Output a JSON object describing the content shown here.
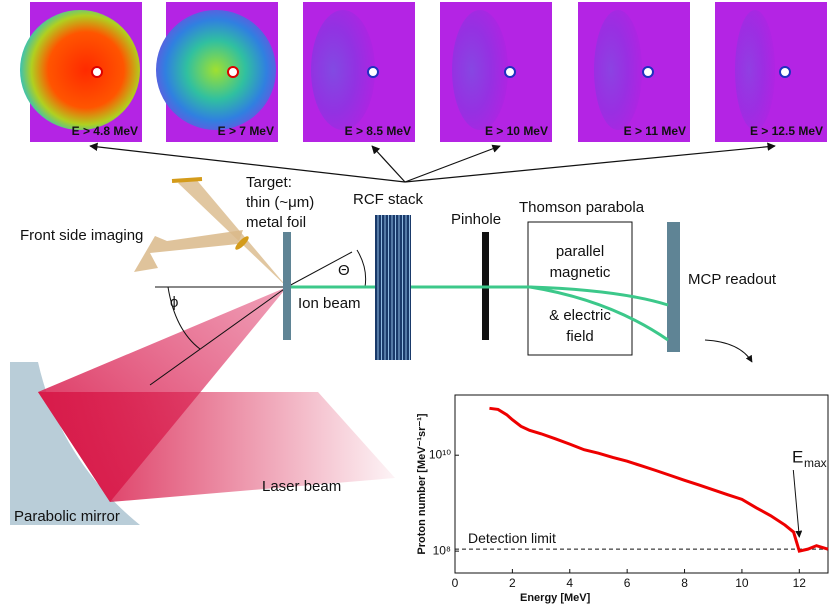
{
  "rcf_images": [
    {
      "label": "E > 4.8 MeV"
    },
    {
      "label": "E > 7 MeV"
    },
    {
      "label": "E > 8.5 MeV"
    },
    {
      "label": "E > 10 MeV"
    },
    {
      "label": "E > 11 MeV"
    },
    {
      "label": "E > 12.5 MeV"
    }
  ],
  "labels": {
    "target_1": "Target:",
    "target_2": "thin (~μm)",
    "target_3": "metal foil",
    "rcf_stack": "RCF stack",
    "pinhole": "Pinhole",
    "thomson": "Thomson parabola",
    "field_1": "parallel",
    "field_2": "magnetic",
    "field_3": "& electric",
    "field_4": "field",
    "mcp": "MCP readout",
    "front_imaging": "Front side imaging",
    "ion_beam": "Ion beam",
    "theta": "Θ",
    "phi": "ϕ",
    "laser_beam": "Laser beam",
    "mirror": "Parabolic mirror"
  },
  "chart_data": {
    "type": "line",
    "xlabel": "Energy  [MeV]",
    "ylabel": "Proton number [MeV⁻¹sr⁻¹]",
    "log_y": true,
    "color": "#ee0000",
    "x": [
      1.2,
      1.5,
      1.8,
      2.0,
      2.3,
      2.6,
      3.0,
      3.5,
      4.0,
      4.5,
      5.0,
      5.5,
      6.0,
      6.5,
      7.0,
      7.5,
      8.0,
      8.5,
      9.0,
      9.5,
      10.0,
      10.5,
      11.0,
      11.5,
      11.8,
      12.0,
      12.3,
      12.6,
      13.0
    ],
    "values": [
      95000000000.0,
      90000000000.0,
      70000000000.0,
      55000000000.0,
      40000000000.0,
      33000000000.0,
      28000000000.0,
      22000000000.0,
      17000000000.0,
      13000000000.0,
      11000000000.0,
      9000000000.0,
      7500000000.0,
      6000000000.0,
      4800000000.0,
      3800000000.0,
      3000000000.0,
      2400000000.0,
      1900000000.0,
      1500000000.0,
      1200000000.0,
      800000000.0,
      550000000.0,
      350000000.0,
      250000000.0,
      100000000.0,
      110000000.0,
      130000000.0,
      110000000.0
    ],
    "xlim": [
      0,
      13
    ],
    "xticks": [
      0,
      2,
      4,
      6,
      8,
      10,
      12
    ],
    "ylim": [
      35000000.0,
      180000000000.0
    ],
    "yticks": [
      {
        "value": 100000000.0,
        "label": "10⁸"
      },
      {
        "value": 10000000000.0,
        "label": "10¹⁰"
      }
    ],
    "detection_limit": 110000000.0,
    "detection_label": "Detection limit",
    "emax_x": 12,
    "emax_label": "E",
    "emax_sub": "max"
  }
}
